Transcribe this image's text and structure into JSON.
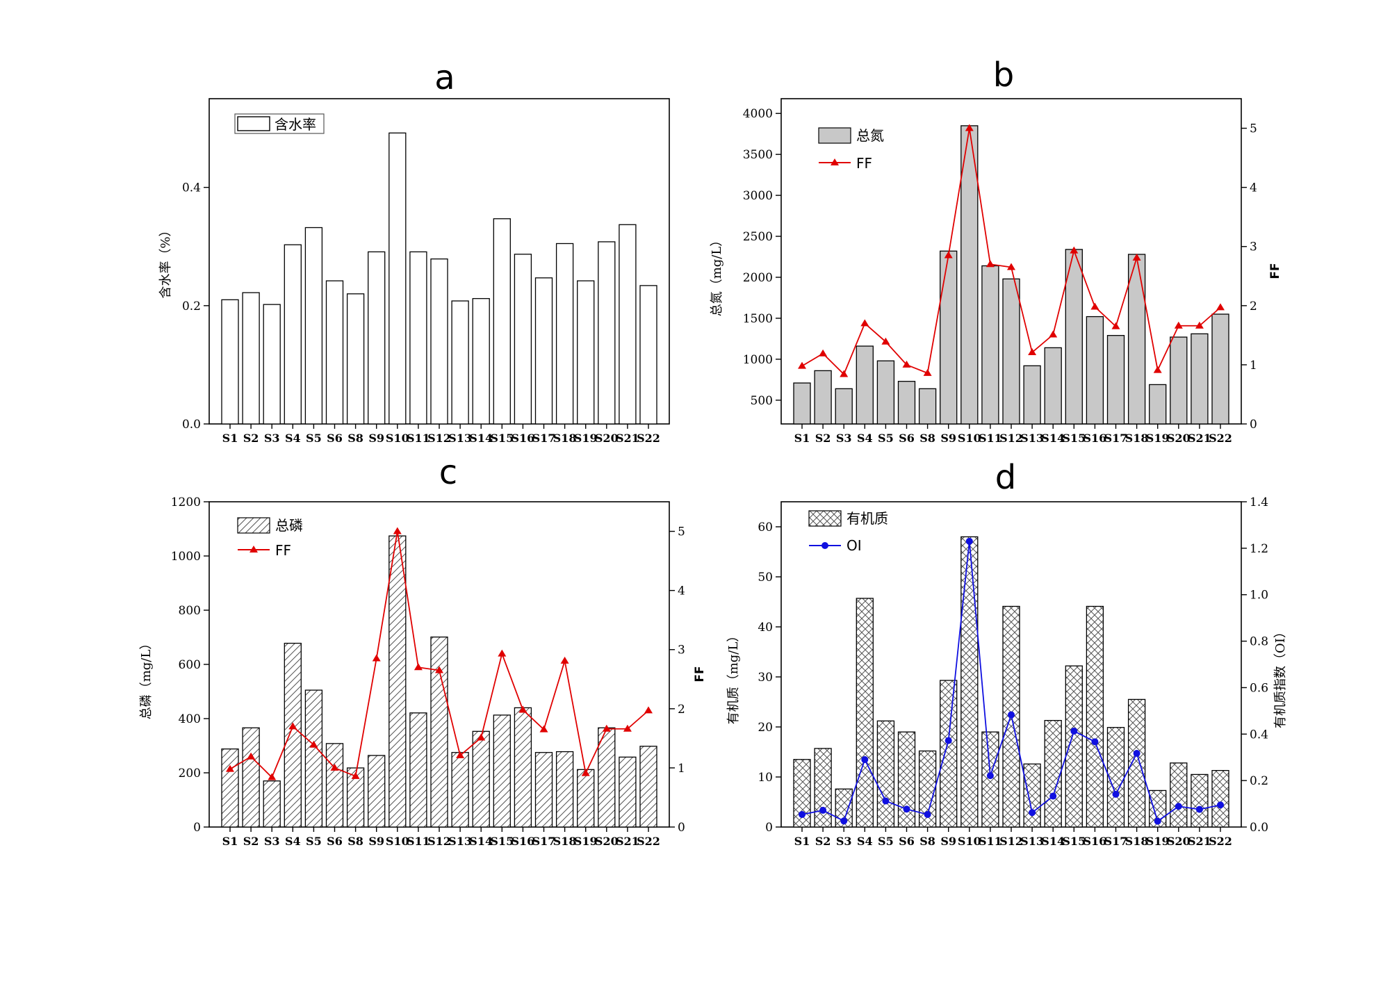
{
  "colors": {
    "bar_fill_a": "#ffffff",
    "bar_fill_b": "#c8c8c8",
    "ff_line": "#e00000",
    "oi_line": "#1010e0",
    "axis": "#000000"
  },
  "chart_data": [
    {
      "id": "a",
      "type": "bar",
      "title": "a",
      "ylabel": "含水率（%）",
      "categories": [
        "S1",
        "S2",
        "S3",
        "S4",
        "S5",
        "S6",
        "S8",
        "S9",
        "S10",
        "S11",
        "S12",
        "S13",
        "S14",
        "S15",
        "S16",
        "S17",
        "S18",
        "S19",
        "S20",
        "S21",
        "S22"
      ],
      "series": [
        {
          "name": "含水率",
          "kind": "bar",
          "pattern": "plain",
          "values": [
            0.21,
            0.222,
            0.202,
            0.303,
            0.332,
            0.242,
            0.22,
            0.291,
            0.492,
            0.291,
            0.279,
            0.208,
            0.212,
            0.347,
            0.287,
            0.247,
            0.305,
            0.242,
            0.308,
            0.337,
            0.234
          ]
        }
      ],
      "ylim": [
        0,
        0.55
      ],
      "yticks": [
        0.0,
        0.2,
        0.4
      ],
      "ytick_labels": [
        "0.0",
        "0.2",
        "0.4"
      ],
      "legend": {
        "position": "top-left",
        "entries": [
          {
            "label": "含水率",
            "kind": "bar"
          }
        ]
      }
    },
    {
      "id": "b",
      "type": "bar",
      "title": "b",
      "ylabel": "总氮（mg/L）",
      "y2label": "FF",
      "categories": [
        "S1",
        "S2",
        "S3",
        "S4",
        "S5",
        "S6",
        "S8",
        "S9",
        "S10",
        "S11",
        "S12",
        "S13",
        "S14",
        "S15",
        "S16",
        "S17",
        "S18",
        "S19",
        "S20",
        "S21",
        "S22"
      ],
      "series": [
        {
          "name": "总氮",
          "kind": "bar",
          "pattern": "gray",
          "values": [
            710,
            860,
            640,
            1160,
            980,
            730,
            640,
            2320,
            3850,
            2140,
            1980,
            920,
            1140,
            2340,
            1520,
            1290,
            2280,
            690,
            1270,
            1310,
            1550
          ]
        },
        {
          "name": "FF",
          "kind": "line",
          "axis": "right",
          "marker": "triangle",
          "values": [
            0.98,
            1.19,
            0.84,
            1.7,
            1.39,
            1.0,
            0.86,
            2.85,
            5.0,
            2.7,
            2.65,
            1.21,
            1.51,
            2.93,
            1.98,
            1.65,
            2.81,
            0.91,
            1.66,
            1.66,
            1.97
          ]
        }
      ],
      "ylim": [
        210,
        4180
      ],
      "yticks": [
        500,
        1000,
        1500,
        2000,
        2500,
        3000,
        3500,
        4000
      ],
      "ytick_labels": [
        "500",
        "1000",
        "1500",
        "2000",
        "2500",
        "3000",
        "3500",
        "4000"
      ],
      "y2lim": [
        0,
        5.5
      ],
      "y2ticks": [
        0,
        1,
        2,
        3,
        4,
        5
      ],
      "y2tick_labels": [
        "0",
        "1",
        "2",
        "3",
        "4",
        "5"
      ],
      "legend": {
        "position": "top-left",
        "entries": [
          {
            "label": "总氮",
            "kind": "bar"
          },
          {
            "label": "FF",
            "kind": "line"
          }
        ]
      }
    },
    {
      "id": "c",
      "type": "bar",
      "title": "c",
      "ylabel": "总磷（mg/L）",
      "y2label": "FF",
      "categories": [
        "S1",
        "S2",
        "S3",
        "S4",
        "S5",
        "S6",
        "S8",
        "S9",
        "S10",
        "S11",
        "S12",
        "S13",
        "S14",
        "S15",
        "S16",
        "S17",
        "S18",
        "S19",
        "S20",
        "S21",
        "S22"
      ],
      "series": [
        {
          "name": "总磷",
          "kind": "bar",
          "pattern": "hatch",
          "values": [
            288,
            366,
            170,
            678,
            505,
            308,
            218,
            264,
            1074,
            421,
            701,
            275,
            353,
            413,
            440,
            275,
            278,
            212,
            366,
            258,
            298
          ]
        },
        {
          "name": "FF",
          "kind": "line",
          "axis": "right",
          "marker": "triangle",
          "values": [
            0.98,
            1.19,
            0.84,
            1.7,
            1.39,
            1.0,
            0.86,
            2.85,
            5.0,
            2.7,
            2.65,
            1.21,
            1.51,
            2.93,
            1.98,
            1.65,
            2.81,
            0.91,
            1.66,
            1.66,
            1.97
          ]
        }
      ],
      "ylim": [
        0,
        1200
      ],
      "yticks": [
        0,
        200,
        400,
        600,
        800,
        1000,
        1200
      ],
      "ytick_labels": [
        "0",
        "200",
        "400",
        "600",
        "800",
        "1000",
        "1200"
      ],
      "y2lim": [
        0,
        5.5
      ],
      "y2ticks": [
        0,
        1,
        2,
        3,
        4,
        5
      ],
      "y2tick_labels": [
        "0",
        "1",
        "2",
        "3",
        "4",
        "5"
      ],
      "legend": {
        "position": "top-left",
        "entries": [
          {
            "label": "总磷",
            "kind": "bar"
          },
          {
            "label": "FF",
            "kind": "line"
          }
        ]
      }
    },
    {
      "id": "d",
      "type": "bar",
      "title": "d",
      "ylabel": "有机质（mg/L）",
      "y2label": "有机质指数（OI）",
      "categories": [
        "S1",
        "S2",
        "S3",
        "S4",
        "S5",
        "S6",
        "S8",
        "S9",
        "S10",
        "S11",
        "S12",
        "S13",
        "S14",
        "S15",
        "S16",
        "S17",
        "S18",
        "S19",
        "S20",
        "S21",
        "S22"
      ],
      "series": [
        {
          "name": "有机质",
          "kind": "bar",
          "pattern": "cross",
          "values": [
            13.5,
            15.7,
            7.6,
            45.7,
            21.2,
            19.0,
            15.2,
            29.3,
            58.0,
            19.0,
            44.1,
            12.6,
            21.3,
            32.2,
            44.1,
            19.9,
            25.5,
            7.3,
            12.8,
            10.5,
            11.3
          ]
        },
        {
          "name": "OI",
          "kind": "line",
          "axis": "right",
          "marker": "circle",
          "values": [
            0.054,
            0.072,
            0.026,
            0.29,
            0.112,
            0.077,
            0.054,
            0.372,
            1.23,
            0.221,
            0.483,
            0.062,
            0.133,
            0.413,
            0.367,
            0.141,
            0.317,
            0.025,
            0.089,
            0.076,
            0.095
          ]
        }
      ],
      "ylim": [
        0,
        65
      ],
      "yticks": [
        0,
        10,
        20,
        30,
        40,
        50,
        60
      ],
      "ytick_labels": [
        "0",
        "10",
        "20",
        "30",
        "40",
        "50",
        "60"
      ],
      "y2lim": [
        0,
        1.4
      ],
      "y2ticks": [
        0.0,
        0.2,
        0.4,
        0.6,
        0.8,
        1.0,
        1.2,
        1.4
      ],
      "y2tick_labels": [
        "0.0",
        "0.2",
        "0.4",
        "0.6",
        "0.8",
        "1.0",
        "1.2",
        "1.4"
      ],
      "legend": {
        "position": "top-left",
        "entries": [
          {
            "label": "有机质",
            "kind": "bar"
          },
          {
            "label": "OI",
            "kind": "line"
          }
        ]
      }
    }
  ]
}
